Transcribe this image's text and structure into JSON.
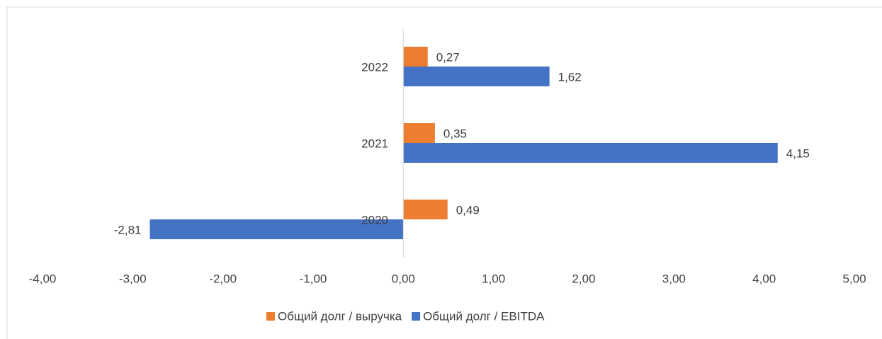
{
  "chart_data": {
    "type": "bar",
    "orientation": "horizontal",
    "categories": [
      "2020",
      "2021",
      "2022"
    ],
    "series": [
      {
        "name": "Общий долг / выручка",
        "color": "#ed7d31",
        "values": [
          0.49,
          0.35,
          0.27
        ],
        "value_labels": [
          "0,49",
          "0,35",
          "0,27"
        ]
      },
      {
        "name": "Общий долг / EBITDA",
        "color": "#4472c4",
        "values": [
          -2.81,
          4.15,
          1.62
        ],
        "value_labels": [
          "-2,81",
          "4,15",
          "1,62"
        ]
      }
    ],
    "xlim": [
      -4,
      5
    ],
    "xticks": [
      {
        "value": -4,
        "label": "-4,00"
      },
      {
        "value": -3,
        "label": "-3,00"
      },
      {
        "value": -2,
        "label": "-2,00"
      },
      {
        "value": -1,
        "label": "-1,00"
      },
      {
        "value": 0,
        "label": "0,00"
      },
      {
        "value": 1,
        "label": "1,00"
      },
      {
        "value": 2,
        "label": "2,00"
      },
      {
        "value": 3,
        "label": "3,00"
      },
      {
        "value": 4,
        "label": "4,00"
      },
      {
        "value": 5,
        "label": "5,00"
      }
    ],
    "legend": "bottom"
  }
}
